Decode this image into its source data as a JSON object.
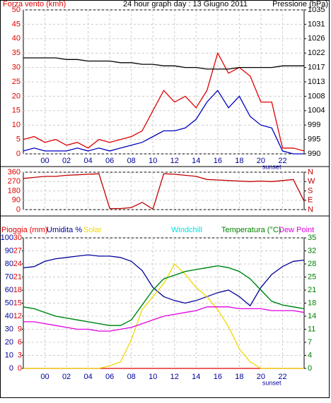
{
  "chart_data": [
    {
      "type": "line",
      "title": "24 hour graph day : 13 Giugno 2011",
      "y_label": "Forza vento (kmh)",
      "y2_label": "Pressione (hPa)",
      "x": [
        -2,
        -1,
        0,
        1,
        2,
        3,
        4,
        5,
        6,
        7,
        8,
        9,
        10,
        11,
        12,
        13,
        14,
        15,
        16,
        17,
        18,
        19,
        20,
        21,
        22,
        23,
        24
      ],
      "xlim": [
        -2,
        24
      ],
      "xticks": [
        {
          "value": 0,
          "label": "00"
        },
        {
          "value": 2,
          "label": "02"
        },
        {
          "value": 4,
          "label": "04"
        },
        {
          "value": 6,
          "label": "06"
        },
        {
          "value": 8,
          "label": "08"
        },
        10,
        12,
        14,
        16,
        18,
        20,
        22
      ],
      "annotations": [
        {
          "text": "sunset",
          "x": 21
        }
      ],
      "ylim": [
        0,
        50
      ],
      "yticks": [
        0,
        5,
        10,
        15,
        20,
        25,
        30,
        35,
        40,
        45,
        50
      ],
      "y2lim": [
        990,
        1035
      ],
      "y2ticks": [
        990,
        {
          "value": 994.5,
          "label": "995"
        },
        999,
        {
          "value": 1003.5,
          "label": "1004"
        },
        1008,
        {
          "value": 1012.5,
          "label": "1013"
        },
        1017,
        {
          "value": 1021.5,
          "label": "1022"
        },
        1026,
        {
          "value": 1030.5,
          "label": "1031"
        },
        1035
      ],
      "grid": true,
      "series": [
        {
          "color": "#e00000",
          "values": [
            5,
            6,
            4,
            5,
            3,
            4,
            2,
            5,
            4,
            5,
            6,
            8,
            15,
            22,
            18,
            20,
            16,
            22,
            35,
            28,
            30,
            27,
            18,
            18,
            2,
            2,
            1
          ]
        },
        {
          "color": "#0000c0",
          "values": [
            1,
            2,
            1,
            1,
            1,
            2,
            1,
            2,
            1,
            2,
            3,
            4,
            6,
            8,
            8,
            9,
            12,
            18,
            22,
            16,
            20,
            13,
            10,
            9,
            1,
            0,
            0
          ]
        },
        {
          "color": "#000000",
          "axis": "y2",
          "values": [
            1020,
            1020,
            1020,
            1020,
            1019.5,
            1019.5,
            1019,
            1019,
            1019,
            1018.5,
            1018.5,
            1018,
            1018,
            1017.5,
            1017.5,
            1017,
            1017,
            1016.5,
            1016.5,
            1016.5,
            1017,
            1017,
            1017,
            1017,
            1017.5,
            1017.5,
            1017.5
          ]
        }
      ]
    },
    {
      "type": "line",
      "x": [
        -2,
        -1,
        0,
        1,
        2,
        3,
        4,
        5,
        6,
        7,
        8,
        9,
        10,
        11,
        12,
        13,
        14,
        15,
        16,
        17,
        18,
        19,
        20,
        21,
        22,
        23,
        24
      ],
      "xlim": [
        -2,
        24
      ],
      "xticks": [
        0,
        2,
        4,
        6,
        8,
        10,
        12,
        14,
        16,
        18,
        20,
        22
      ],
      "ylim": [
        0,
        360
      ],
      "yticks": [
        0,
        90,
        180,
        270,
        360
      ],
      "y2lim": [
        0,
        360
      ],
      "y2ticks": [
        {
          "value": 0,
          "label": "N"
        },
        {
          "value": 90,
          "label": "E"
        },
        {
          "value": 180,
          "label": "S"
        },
        {
          "value": 270,
          "label": "W"
        },
        {
          "value": 360,
          "label": "N"
        }
      ],
      "grid": true,
      "series": [
        {
          "color": "#c00000",
          "values": [
            300,
            310,
            320,
            320,
            330,
            335,
            340,
            345,
            10,
            10,
            20,
            70,
            5,
            345,
            340,
            330,
            320,
            290,
            285,
            280,
            275,
            270,
            275,
            270,
            280,
            290,
            80
          ]
        }
      ]
    },
    {
      "type": "line",
      "x": [
        -2,
        -1,
        0,
        1,
        2,
        3,
        4,
        5,
        6,
        7,
        8,
        9,
        10,
        11,
        12,
        13,
        14,
        15,
        16,
        17,
        18,
        19,
        20,
        21,
        22,
        23,
        24
      ],
      "xlim": [
        -2,
        24
      ],
      "xticks": [
        {
          "value": 0,
          "label": "00"
        },
        {
          "value": 2,
          "label": "02"
        },
        {
          "value": 4,
          "label": "04"
        },
        {
          "value": 6,
          "label": "06"
        },
        {
          "value": 8,
          "label": "08"
        },
        10,
        12,
        14,
        16,
        18,
        20,
        22
      ],
      "annotations": [
        {
          "text": "sunset",
          "x": 21
        }
      ],
      "ylim": [
        0,
        100
      ],
      "yticks": [
        0,
        10,
        20,
        30,
        40,
        50,
        60,
        70,
        80,
        90,
        100
      ],
      "y3lim": [
        0,
        30
      ],
      "y3ticks": [
        0,
        3,
        6,
        9,
        12,
        15,
        18,
        21,
        24,
        27,
        30
      ],
      "y2lim": [
        0,
        35
      ],
      "y2ticks": [
        0,
        {
          "value": 3.5,
          "label": "4"
        },
        7,
        {
          "value": 10.5,
          "label": "11"
        },
        14,
        {
          "value": 17.5,
          "label": "18"
        },
        21,
        {
          "value": 24.5,
          "label": "25"
        },
        28,
        {
          "value": 31.5,
          "label": "32"
        },
        35
      ],
      "grid": true,
      "series": [
        {
          "name": "Pioggia (mm)",
          "color": "#e00000",
          "axis": "y3",
          "values": [
            0,
            0,
            0,
            0,
            0,
            0,
            0,
            0,
            0,
            0,
            0,
            0,
            0,
            0,
            0,
            0,
            0,
            0,
            0,
            0,
            0,
            0,
            0,
            0,
            0,
            0,
            0
          ]
        },
        {
          "name": "Umidita %",
          "color": "#000099",
          "values": [
            77,
            78,
            82,
            84,
            85,
            86,
            87,
            86,
            86,
            85,
            82,
            75,
            62,
            55,
            52,
            50,
            52,
            55,
            58,
            60,
            55,
            48,
            62,
            72,
            78,
            82,
            83
          ]
        },
        {
          "name": "Solar",
          "color": "#f0d800",
          "values": [
            0,
            0,
            0,
            0,
            0,
            0,
            0,
            0,
            2,
            5,
            22,
            45,
            55,
            65,
            80,
            72,
            62,
            55,
            45,
            32,
            15,
            5,
            0,
            0,
            0,
            0,
            0
          ]
        },
        {
          "name": "Windchill",
          "color": "#00e0e0",
          "axis": "y2",
          "values": [
            16.5,
            16,
            15,
            14,
            13.5,
            13,
            12.5,
            12,
            11.5,
            11.5,
            13,
            17,
            21,
            24,
            25,
            26,
            26.5,
            27,
            27.5,
            27,
            26,
            24,
            21,
            18,
            17,
            16.5,
            16
          ]
        },
        {
          "name": "Temperatura (°C)",
          "color": "#008000",
          "axis": "y2",
          "values": [
            16.5,
            16,
            15,
            14,
            13.5,
            13,
            12.5,
            12,
            11.5,
            11.5,
            13,
            17,
            21,
            24,
            25,
            26,
            26.5,
            27,
            27.5,
            27,
            26,
            24,
            21,
            18,
            17,
            16.5,
            16
          ]
        },
        {
          "name": "Dew Point",
          "color": "#e000e0",
          "axis": "y2",
          "values": [
            12.5,
            12.5,
            12,
            11.5,
            11,
            10.5,
            10.5,
            10,
            10,
            10.5,
            11,
            12,
            13,
            14,
            14.5,
            15,
            15.5,
            16.5,
            16.5,
            16.5,
            16,
            16,
            16,
            15.5,
            15.5,
            15.5,
            15
          ]
        }
      ]
    }
  ]
}
